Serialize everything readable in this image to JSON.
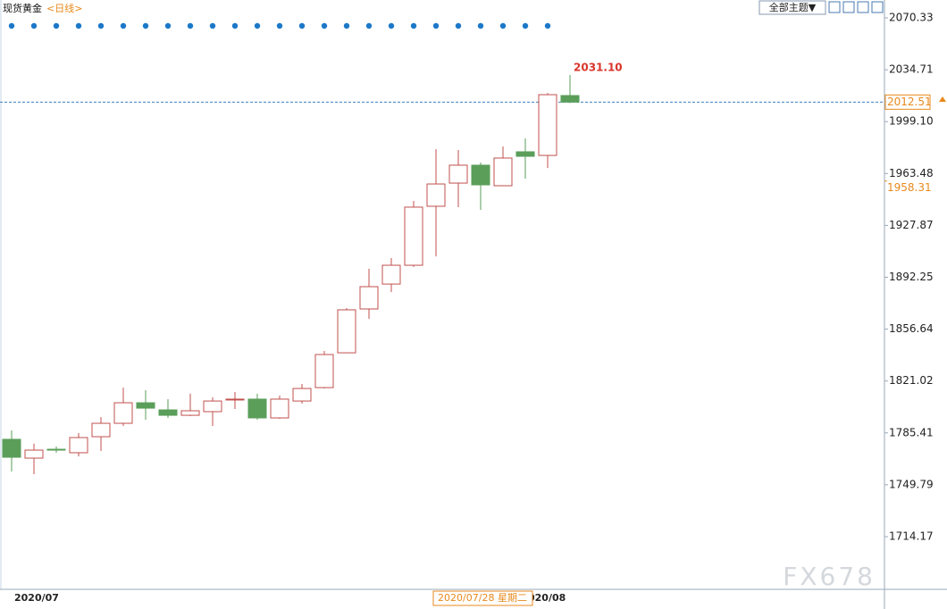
{
  "chart_data": {
    "type": "candlestick",
    "title": "现货黄金",
    "period": "<日线>",
    "theme_button": "全部主题▼",
    "categories": [
      "2020/07",
      null,
      null,
      null,
      null,
      null,
      null,
      null,
      null,
      null,
      null,
      null,
      null,
      null,
      null,
      null,
      null,
      null,
      null,
      null,
      null,
      null,
      null,
      "020/08",
      null,
      null
    ],
    "open": [
      1781.0,
      1768.1,
      1774.2,
      1771.8,
      1782.8,
      1792.0,
      1806.1,
      1801.2,
      1797.5,
      1800.0,
      1808.0,
      1808.6,
      1795.7,
      1807.3,
      1816.5,
      1840.4,
      1870.5,
      1887.6,
      1900.5,
      1941.0,
      1956.9,
      1969.2,
      1955.1,
      1978.4,
      1975.9,
      2017.0
    ],
    "high": [
      1787.1,
      1778.0,
      1776.1,
      1785.3,
      1796.3,
      1816.5,
      1814.7,
      1808.6,
      1812.3,
      1809.8,
      1813.5,
      1812.3,
      1811.0,
      1819.0,
      1841.7,
      1871.1,
      1898.1,
      1905.4,
      1944.7,
      1980.2,
      1979.6,
      1971.0,
      1982.1,
      1987.6,
      2018.8,
      2031.1
    ],
    "low": [
      1758.9,
      1757.1,
      1771.8,
      1769.3,
      1773.0,
      1790.2,
      1794.5,
      1795.7,
      1796.9,
      1790.2,
      1801.8,
      1794.5,
      1795.1,
      1805.5,
      1815.9,
      1840.4,
      1863.7,
      1882.1,
      1899.3,
      1906.6,
      1940.4,
      1938.5,
      1955.1,
      1960.0,
      1967.3,
      2011.8
    ],
    "close": [
      1768.7,
      1773.6,
      1773.6,
      1782.2,
      1792.0,
      1806.1,
      1802.4,
      1797.5,
      1800.6,
      1807.3,
      1808.6,
      1795.7,
      1808.6,
      1815.9,
      1839.2,
      1869.9,
      1885.8,
      1900.5,
      1940.4,
      1956.3,
      1969.2,
      1955.7,
      1974.1,
      1975.3,
      2017.6,
      2012.51
    ],
    "up_color": "#c0504d",
    "down_color": "#5a9e5a",
    "high_label": "2031.10",
    "high_label_color": "#d9342b",
    "current_price": 2012.51,
    "current_price_color": "#e8891c",
    "current_line_color": "#3c7fc1",
    "marker_price": 1958.31,
    "crosshair_date": "2020/07/28 星期二",
    "ylim": [
      1678.0,
      2082.6
    ],
    "yticks": [
      2070.33,
      2034.71,
      {
        "value": 1999.1,
        "label": "1999.10"
      },
      1963.48,
      1927.87,
      1892.25,
      1856.64,
      1821.02,
      1785.41,
      1749.79,
      1714.17
    ],
    "watermark": "FX678"
  }
}
